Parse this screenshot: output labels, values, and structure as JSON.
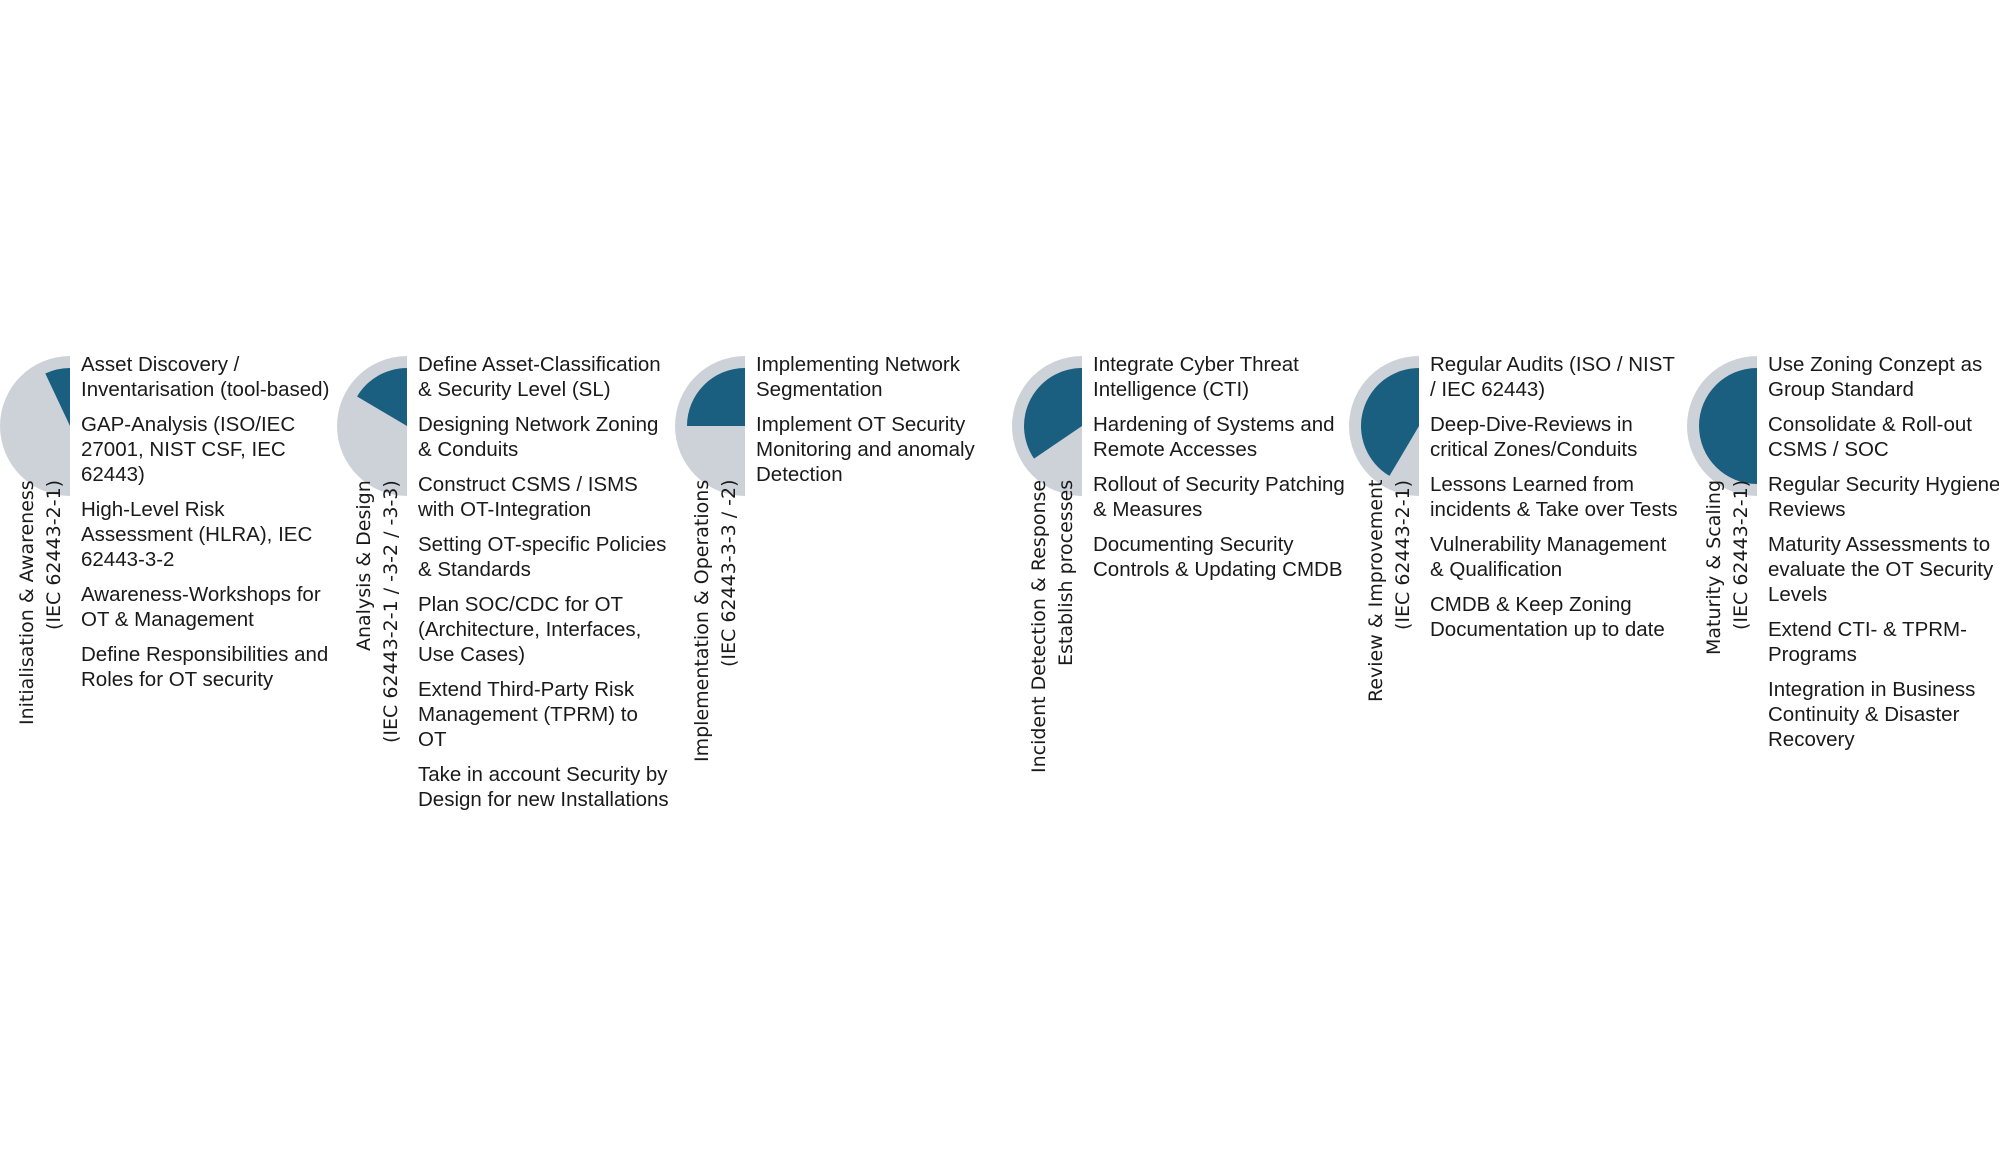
{
  "colors": {
    "accent": "#1a5f80",
    "track": "#cdd2d9"
  },
  "phases": [
    {
      "title": "Initialisation & Awareness",
      "subtitle": "(IEC 62443-2-1)",
      "progress": 0.14,
      "items": [
        "Asset Discovery / Inventarisation (tool-based)",
        "GAP-Analysis (ISO/IEC 27001, NIST CSF, IEC 62443)",
        "High-Level Risk Assessment (HLRA), IEC 62443-3-2",
        "Awareness-Workshops for OT & Management",
        "Define Responsibilities and Roles for OT security"
      ]
    },
    {
      "title": "Analysis & Design",
      "subtitle": "(IEC 62443-2-1 / -3-2 / -3-3)",
      "progress": 0.33,
      "items": [
        "Define Asset-Classification & Security Level (SL)",
        "Designing Network Zoning & Conduits",
        "Construct CSMS / ISMS with OT-Integration",
        "Setting OT-specific Policies & Standards",
        "Plan SOC/CDC for OT (Architecture, Interfaces, Use Cases)",
        "Extend Third-Party Risk Management (TPRM) to OT",
        "Take in account Security by Design for new Installations"
      ]
    },
    {
      "title": "Implementation & Operations",
      "subtitle": "(IEC 62443-3-3 / -2)",
      "progress": 0.5,
      "items": [
        "Implementing Network Segmentation",
        "Implement OT Security Monitoring and anomaly Detection"
      ]
    },
    {
      "title": "Incident Detection & Response",
      "subtitle": "Establish processes",
      "progress": 0.69,
      "items": [
        "Integrate Cyber Threat Intelligence (CTI)",
        "Hardening of Systems and Remote Accesses",
        "Rollout of Security Patching & Measures",
        "Documenting Security Controls & Updating CMDB"
      ]
    },
    {
      "title": "Review & Improvement",
      "subtitle": "(IEC 62443-2-1)",
      "progress": 0.83,
      "items": [
        "Regular Audits (ISO / NIST / IEC 62443)",
        "Deep-Dive-Reviews in critical Zones/Conduits",
        "Lessons Learned from incidents & Take over Tests",
        "Vulnerability Management & Qualification",
        "CMDB & Keep Zoning Documentation up to date"
      ]
    },
    {
      "title": "Maturity & Scaling",
      "subtitle": "(IEC 62443-2-1)",
      "progress": 1.0,
      "items": [
        "Use Zoning Conzept as Group Standard",
        "Consolidate & Roll-out CSMS / SOC",
        "Regular Security Hygiene Reviews",
        "Maturity Assessments to evaluate the OT Security Levels",
        "Extend CTI- & TPRM-Programs",
        "Integration in Business Continuity & Disaster Recovery"
      ]
    }
  ]
}
